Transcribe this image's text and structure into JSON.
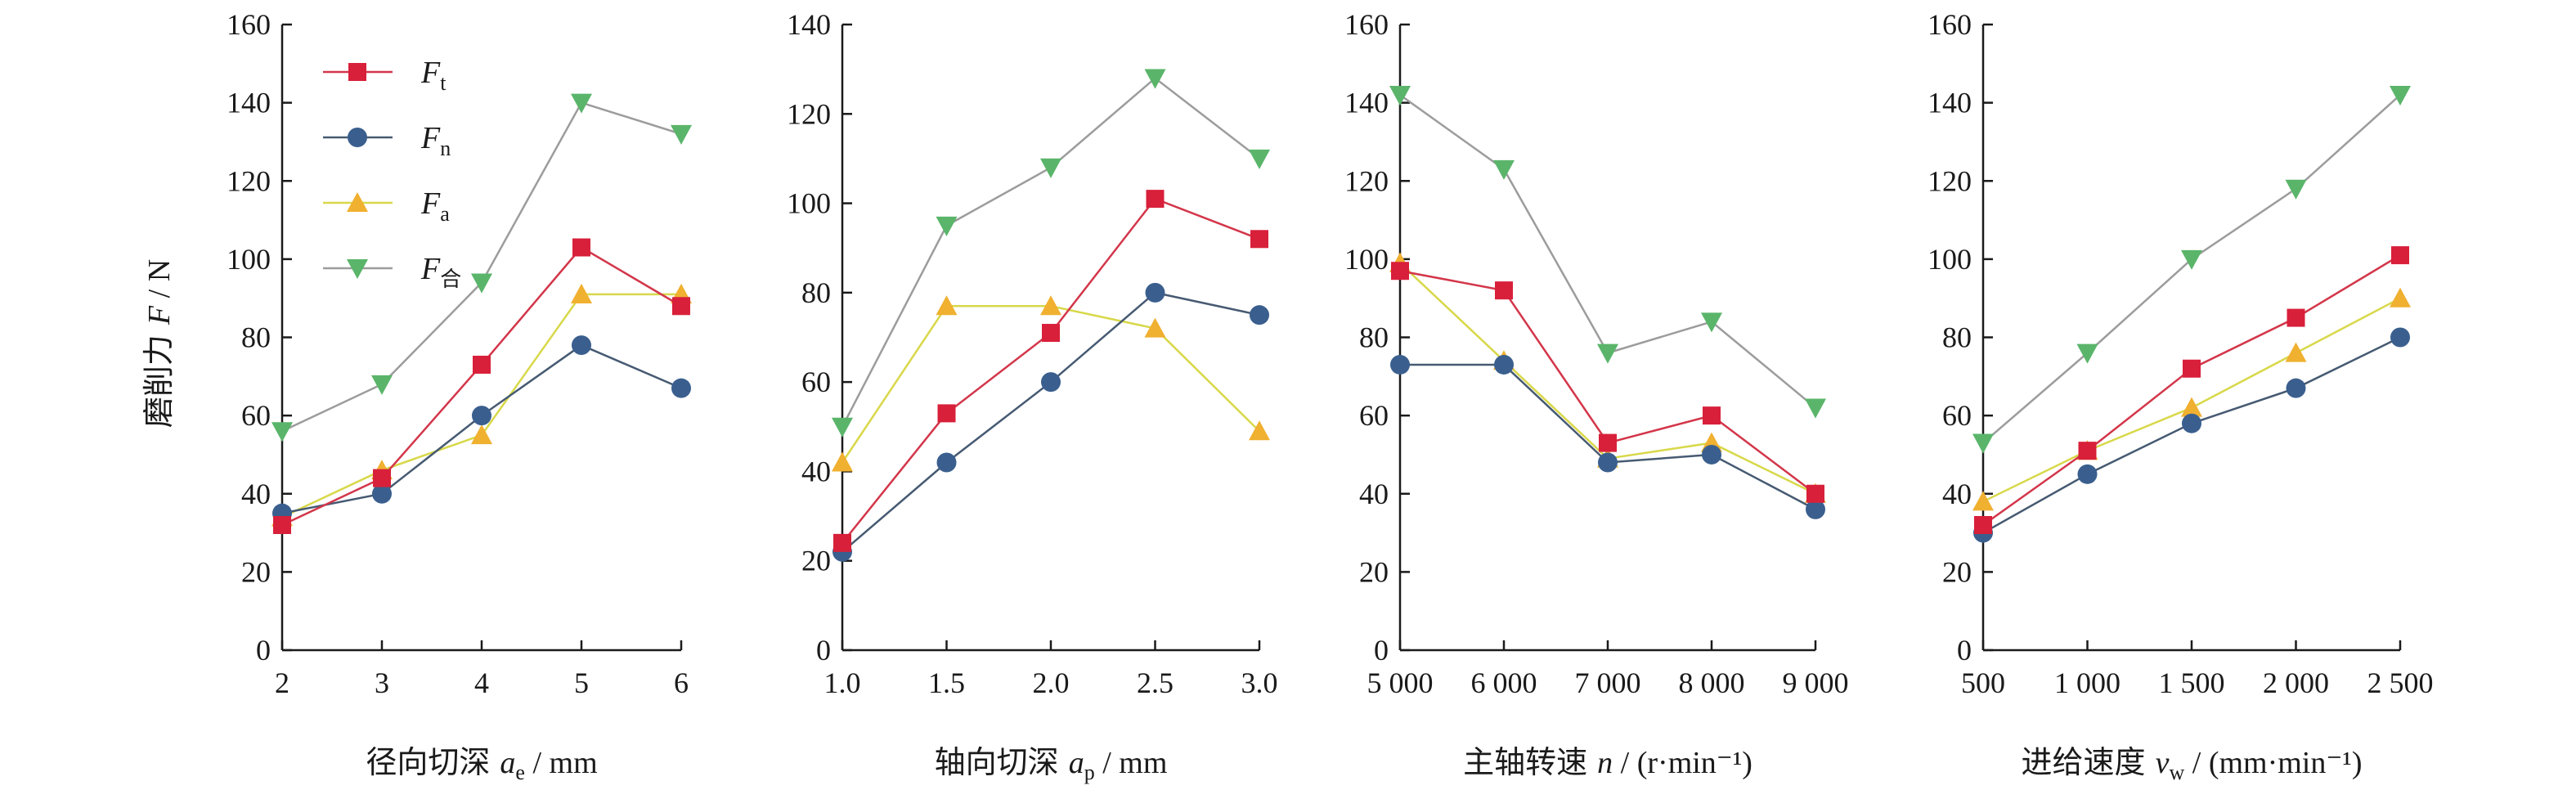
{
  "y_axis_label": "磨削力 F / N",
  "chart_data": [
    {
      "type": "line",
      "xlabel": "径向切深 a_e / mm",
      "xlabel_parts": {
        "text": "径向切深 ",
        "var": "a",
        "sub": "e",
        "unit": " / mm"
      },
      "x": [
        2,
        3,
        4,
        5,
        6
      ],
      "x_ticks": [
        "2",
        "3",
        "4",
        "5",
        "6"
      ],
      "xlim": [
        2,
        6
      ],
      "ylim": [
        0,
        160
      ],
      "y_ticks": [
        0,
        20,
        40,
        60,
        80,
        100,
        120,
        140,
        160
      ],
      "series": [
        {
          "name": "Ft",
          "values": [
            32,
            44,
            73,
            103,
            88
          ]
        },
        {
          "name": "Fn",
          "values": [
            35,
            40,
            60,
            78,
            67
          ]
        },
        {
          "name": "Fa",
          "values": [
            34,
            46,
            55,
            91,
            91
          ]
        },
        {
          "name": "F合",
          "values": [
            56,
            68,
            94,
            140,
            132
          ]
        }
      ]
    },
    {
      "type": "line",
      "xlabel": "轴向切深 a_p / mm",
      "xlabel_parts": {
        "text": "轴向切深 ",
        "var": "a",
        "sub": "p",
        "unit": " / mm"
      },
      "x": [
        1.0,
        1.5,
        2.0,
        2.5,
        3.0
      ],
      "x_ticks": [
        "1.0",
        "1.5",
        "2.0",
        "2.5",
        "3.0"
      ],
      "xlim": [
        1.0,
        3.0
      ],
      "ylim": [
        0,
        140
      ],
      "y_ticks": [
        0,
        20,
        40,
        60,
        80,
        100,
        120,
        140
      ],
      "series": [
        {
          "name": "Ft",
          "values": [
            24,
            53,
            71,
            101,
            92
          ]
        },
        {
          "name": "Fn",
          "values": [
            22,
            42,
            60,
            80,
            75
          ]
        },
        {
          "name": "Fa",
          "values": [
            42,
            77,
            77,
            72,
            49
          ]
        },
        {
          "name": "F合",
          "values": [
            50,
            95,
            108,
            128,
            110
          ]
        }
      ]
    },
    {
      "type": "line",
      "xlabel": "主轴转速 n / (r·min⁻¹)",
      "xlabel_parts": {
        "text": "主轴转速 ",
        "var": "n",
        "sub": "",
        "unit": " / (r·min⁻¹)"
      },
      "x": [
        5000,
        6000,
        7000,
        8000,
        9000
      ],
      "x_ticks": [
        "5 000",
        "6 000",
        "7 000",
        "8 000",
        "9 000"
      ],
      "xlim": [
        5000,
        9000
      ],
      "ylim": [
        0,
        160
      ],
      "y_ticks": [
        0,
        20,
        40,
        60,
        80,
        100,
        120,
        140,
        160
      ],
      "series": [
        {
          "name": "Ft",
          "values": [
            97,
            92,
            53,
            60,
            40
          ]
        },
        {
          "name": "Fn",
          "values": [
            73,
            73,
            48,
            50,
            36
          ]
        },
        {
          "name": "Fa",
          "values": [
            99,
            74,
            49,
            53,
            40
          ]
        },
        {
          "name": "F合",
          "values": [
            142,
            123,
            76,
            84,
            62
          ]
        }
      ]
    },
    {
      "type": "line",
      "xlabel": "进给速度 v_w / (mm·min⁻¹)",
      "xlabel_parts": {
        "text": "进给速度 ",
        "var": "v",
        "sub": "w",
        "unit": " / (mm·min⁻¹)"
      },
      "x": [
        500,
        1000,
        1500,
        2000,
        2500
      ],
      "x_ticks": [
        "500",
        "1 000",
        "1 500",
        "2 000",
        "2 500"
      ],
      "xlim": [
        500,
        2500
      ],
      "ylim": [
        0,
        160
      ],
      "y_ticks": [
        0,
        20,
        40,
        60,
        80,
        100,
        120,
        140,
        160
      ],
      "series": [
        {
          "name": "Ft",
          "values": [
            32,
            51,
            72,
            85,
            101
          ]
        },
        {
          "name": "Fn",
          "values": [
            30,
            45,
            58,
            67,
            80
          ]
        },
        {
          "name": "Fa",
          "values": [
            38,
            51,
            62,
            76,
            90
          ]
        },
        {
          "name": "F合",
          "values": [
            53,
            76,
            100,
            118,
            142
          ]
        }
      ]
    }
  ],
  "legend": {
    "placement": "top-left of first panel",
    "items": [
      {
        "var": "F",
        "sub": "t",
        "series": "Ft"
      },
      {
        "var": "F",
        "sub": "n",
        "series": "Fn"
      },
      {
        "var": "F",
        "sub": "a",
        "series": "Fa"
      },
      {
        "var": "F",
        "sub": "合",
        "series": "F合"
      }
    ]
  },
  "colors": {
    "Ft": {
      "line": "#d3364a",
      "marker": "#d8203a",
      "shape": "square"
    },
    "Fn": {
      "line": "#465a72",
      "marker": "#3a5f8e",
      "shape": "circle"
    },
    "Fa": {
      "line": "#d8d84a",
      "marker": "#f0b030",
      "shape": "triangle-up"
    },
    "F合": {
      "line": "#9c9c9c",
      "marker": "#5ab56a",
      "shape": "triangle-down"
    },
    "axis": "#1a1a1a"
  }
}
